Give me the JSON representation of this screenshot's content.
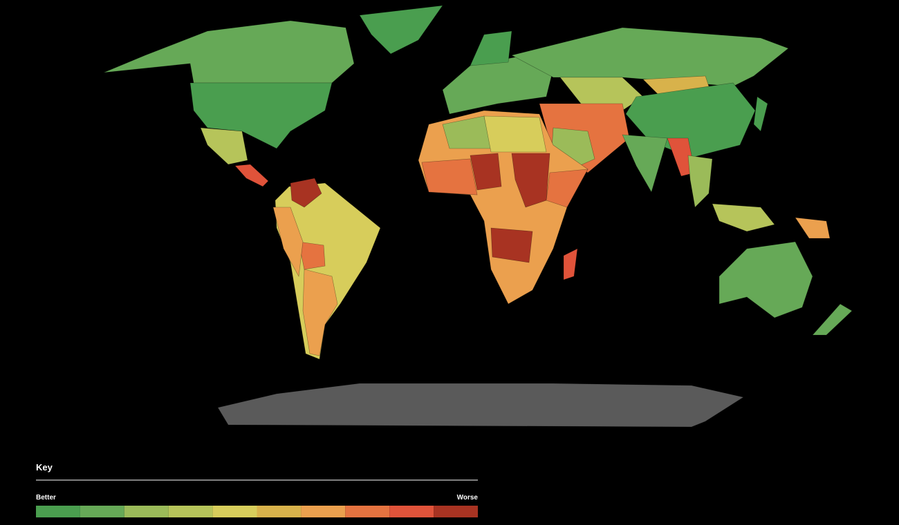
{
  "key": {
    "title": "Key",
    "low_label": "Better",
    "high_label": "Worse",
    "colors": [
      "#4a9e4f",
      "#66a957",
      "#9bbb59",
      "#b6c45a",
      "#d7cd5b",
      "#d8b24b",
      "#eba04e",
      "#e57340",
      "#e0533a",
      "#a83322"
    ]
  }
}
